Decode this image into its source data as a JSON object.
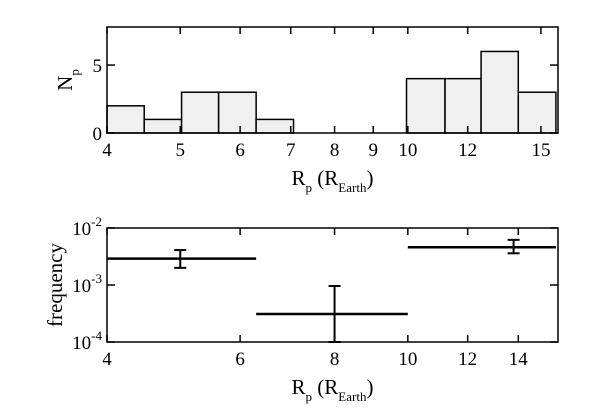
{
  "chart_data": [
    {
      "type": "histogram",
      "bins": [
        4,
        4.48,
        5.02,
        5.62,
        6.3,
        7.06,
        7.92,
        8.88,
        9.96,
        11.2,
        12.5,
        14.0,
        15.7
      ],
      "values": [
        2,
        1,
        3,
        3,
        1,
        0,
        0,
        0,
        4,
        4,
        6,
        3
      ],
      "color": "#f0f0f0",
      "xlim": [
        4,
        15.8
      ],
      "xlog": true,
      "xticks": [
        4,
        5,
        6,
        7,
        8,
        9,
        10,
        12,
        15
      ],
      "ylim": [
        0,
        7.8
      ],
      "yticks": [
        0,
        5
      ],
      "ylabel": [
        {
          "text": "N"
        },
        {
          "text": "p",
          "sub": true
        }
      ],
      "xlabel": [
        {
          "text": "R"
        },
        {
          "text": "p",
          "sub": true
        },
        {
          "text": " (R"
        },
        {
          "text": "Earth",
          "sub": true
        },
        {
          "text": ")"
        }
      ]
    },
    {
      "type": "errorbar",
      "bins_low": [
        4,
        6.3,
        10
      ],
      "bins_high": [
        6.3,
        10,
        15.7
      ],
      "x": [
        5,
        8,
        13.8
      ],
      "values": [
        0.0029,
        0.00031,
        0.0046
      ],
      "err_lower": [
        0.002,
        0.0001,
        0.0036
      ],
      "err_upper": [
        0.0041,
        0.00096,
        0.0062
      ],
      "color": "#000000",
      "xlim": [
        4,
        15.8
      ],
      "xlog": true,
      "xticks": [
        4,
        6,
        8,
        10,
        12,
        14
      ],
      "ylim": [
        0.0001,
        0.01
      ],
      "ylog": true,
      "yticks": [
        {
          "value": 0.0001,
          "label": "10",
          "exponent": "-4"
        },
        {
          "value": 0.001,
          "label": "10",
          "exponent": "-3"
        },
        {
          "value": 0.01,
          "label": "10",
          "exponent": "-2"
        }
      ],
      "ylabel": [
        {
          "text": "frequency"
        }
      ],
      "xlabel": [
        {
          "text": "R"
        },
        {
          "text": "p",
          "sub": true
        },
        {
          "text": " (R"
        },
        {
          "text": "Earth",
          "sub": true
        },
        {
          "text": ")"
        }
      ]
    }
  ]
}
